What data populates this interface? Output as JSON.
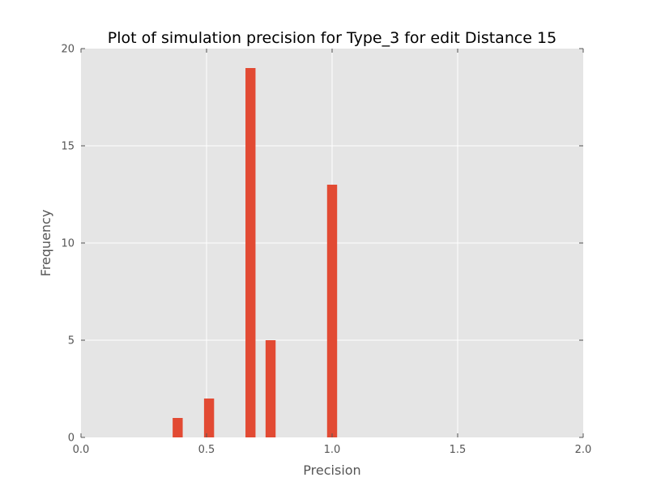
{
  "chart_data": {
    "type": "bar",
    "title": "Plot of simulation precision for Type_3 for edit Distance 15",
    "xlabel": "Precision",
    "ylabel": "Frequency",
    "xlim": [
      0.0,
      2.0
    ],
    "ylim": [
      0,
      20
    ],
    "xticks": [
      "0.0",
      "0.5",
      "1.0",
      "1.5",
      "2.0"
    ],
    "yticks": [
      "0",
      "5",
      "10",
      "15",
      "20"
    ],
    "grid": true,
    "bar_color": "#E24A33",
    "background_color": "#E5E5E5",
    "grid_color": "#FFFFFF",
    "bar_width": 0.04,
    "bars": [
      {
        "x": 0.385,
        "value": 1
      },
      {
        "x": 0.51,
        "value": 2
      },
      {
        "x": 0.675,
        "value": 19
      },
      {
        "x": 0.755,
        "value": 5
      },
      {
        "x": 1.0,
        "value": 13
      }
    ]
  }
}
